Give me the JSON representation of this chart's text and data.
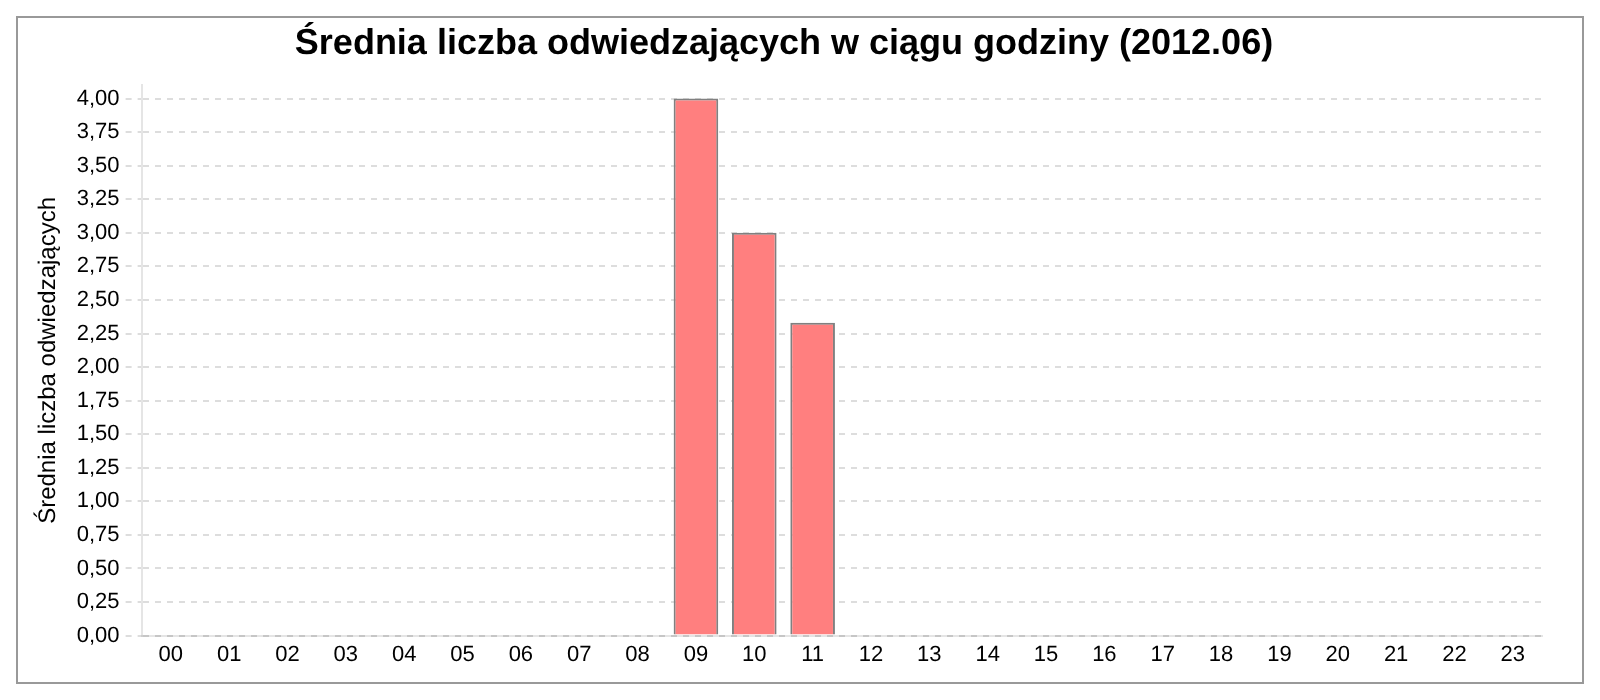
{
  "chart_data": {
    "type": "bar",
    "title": "Średnia liczba odwiedzających w ciągu godziny (2012.06)",
    "ylabel": "Średnia liczba odwiedzających",
    "categories": [
      "00",
      "01",
      "02",
      "03",
      "04",
      "05",
      "06",
      "07",
      "08",
      "09",
      "10",
      "11",
      "12",
      "13",
      "14",
      "15",
      "16",
      "17",
      "18",
      "19",
      "20",
      "21",
      "22",
      "23"
    ],
    "values": [
      0,
      0,
      0,
      0,
      0,
      0,
      0,
      0,
      0,
      4,
      3,
      2.33,
      0,
      0,
      0,
      0,
      0,
      0,
      0,
      0,
      0,
      0,
      0,
      0
    ],
    "color": "#ff7f7f",
    "ylim": [
      0,
      4.1
    ],
    "yticks": [
      {
        "value": 0,
        "label": "0,00"
      },
      {
        "value": 0.25,
        "label": "0,25"
      },
      {
        "value": 0.5,
        "label": "0,50"
      },
      {
        "value": 0.75,
        "label": "0,75"
      },
      {
        "value": 1,
        "label": "1,00"
      },
      {
        "value": 1.25,
        "label": "1,25"
      },
      {
        "value": 1.5,
        "label": "1,50"
      },
      {
        "value": 1.75,
        "label": "1,75"
      },
      {
        "value": 2,
        "label": "2,00"
      },
      {
        "value": 2.25,
        "label": "2,25"
      },
      {
        "value": 2.5,
        "label": "2,50"
      },
      {
        "value": 2.75,
        "label": "2,75"
      },
      {
        "value": 3,
        "label": "3,00"
      },
      {
        "value": 3.25,
        "label": "3,25"
      },
      {
        "value": 3.5,
        "label": "3,50"
      },
      {
        "value": 3.75,
        "label": "3,75"
      },
      {
        "value": 4,
        "label": "4,00"
      }
    ],
    "grid": "y",
    "legend": false
  }
}
